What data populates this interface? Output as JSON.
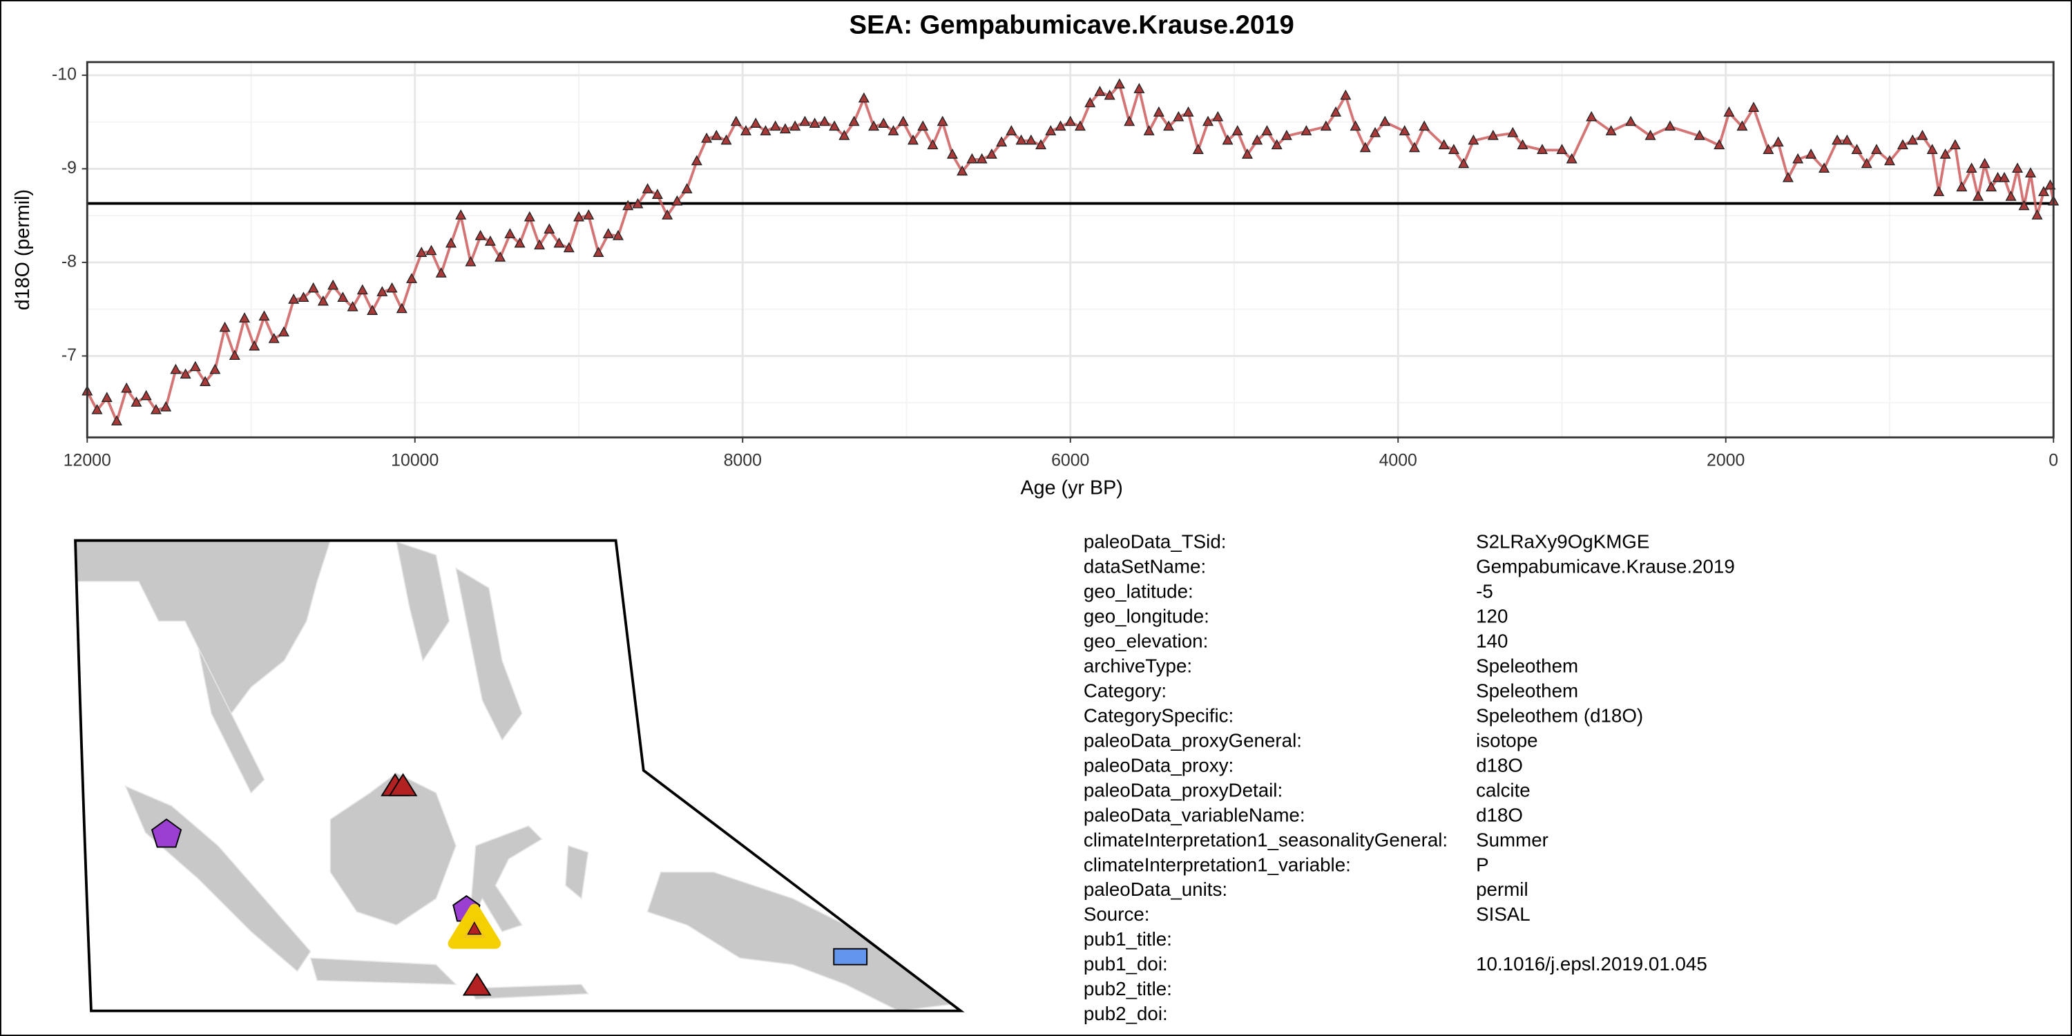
{
  "chart_data": {
    "type": "line",
    "title": "SEA: Gempabumicave.Krause.2019",
    "xlabel": "Age (yr BP)",
    "ylabel": "d18O (permil)",
    "xlim": [
      12000,
      0
    ],
    "xticks": [
      12000,
      10000,
      8000,
      6000,
      4000,
      2000,
      0
    ],
    "xminorticks": [
      11000,
      9000,
      7000,
      5000,
      3000,
      1000
    ],
    "ylim": [
      -6.13,
      -10.14
    ],
    "yticks": [
      -10,
      -9,
      -8,
      -7
    ],
    "yminorticks": [
      -9.5,
      -8.5,
      -7.5,
      -6.5
    ],
    "grid": true,
    "reference_line": -8.63,
    "color": "#cd5c5c",
    "marker_color": "#a83a3a",
    "x": [
      12000,
      11940,
      11880,
      11820,
      11760,
      11700,
      11640,
      11580,
      11520,
      11460,
      11400,
      11340,
      11280,
      11220,
      11160,
      11100,
      11040,
      10980,
      10920,
      10860,
      10800,
      10740,
      10680,
      10620,
      10560,
      10500,
      10440,
      10380,
      10320,
      10260,
      10200,
      10140,
      10080,
      10020,
      9960,
      9900,
      9840,
      9780,
      9720,
      9660,
      9600,
      9540,
      9480,
      9420,
      9360,
      9300,
      9240,
      9180,
      9120,
      9060,
      9000,
      8940,
      8880,
      8820,
      8760,
      8700,
      8640,
      8580,
      8520,
      8460,
      8400,
      8340,
      8280,
      8220,
      8160,
      8100,
      8040,
      7980,
      7920,
      7860,
      7800,
      7740,
      7680,
      7620,
      7560,
      7500,
      7440,
      7380,
      7320,
      7260,
      7200,
      7140,
      7080,
      7020,
      6960,
      6900,
      6840,
      6780,
      6720,
      6660,
      6600,
      6540,
      6480,
      6420,
      6360,
      6300,
      6240,
      6180,
      6120,
      6060,
      6000,
      5940,
      5880,
      5820,
      5760,
      5700,
      5640,
      5580,
      5520,
      5460,
      5400,
      5340,
      5280,
      5220,
      5160,
      5100,
      5040,
      4980,
      4920,
      4860,
      4800,
      4740,
      4680,
      4560,
      4440,
      4380,
      4320,
      4260,
      4200,
      4140,
      4080,
      3960,
      3900,
      3840,
      3720,
      3660,
      3600,
      3540,
      3420,
      3300,
      3240,
      3120,
      3000,
      2940,
      2820,
      2700,
      2580,
      2460,
      2340,
      2160,
      2040,
      1980,
      1900,
      1830,
      1740,
      1680,
      1620,
      1560,
      1480,
      1400,
      1320,
      1260,
      1200,
      1140,
      1080,
      1000,
      920,
      860,
      800,
      740,
      700,
      660,
      600,
      560,
      500,
      460,
      420,
      380,
      340,
      300,
      260,
      220,
      180,
      140,
      100,
      60,
      20,
      0
    ],
    "values": [
      -6.62,
      -6.42,
      -6.55,
      -6.3,
      -6.65,
      -6.5,
      -6.57,
      -6.42,
      -6.45,
      -6.85,
      -6.8,
      -6.88,
      -6.72,
      -6.85,
      -7.3,
      -7.0,
      -7.4,
      -7.1,
      -7.42,
      -7.18,
      -7.25,
      -7.6,
      -7.62,
      -7.72,
      -7.58,
      -7.75,
      -7.62,
      -7.52,
      -7.7,
      -7.48,
      -7.68,
      -7.72,
      -7.5,
      -7.82,
      -8.1,
      -8.12,
      -7.88,
      -8.2,
      -8.5,
      -8.0,
      -8.28,
      -8.22,
      -8.05,
      -8.3,
      -8.2,
      -8.48,
      -8.18,
      -8.35,
      -8.2,
      -8.15,
      -8.48,
      -8.5,
      -8.1,
      -8.3,
      -8.28,
      -8.6,
      -8.62,
      -8.78,
      -8.72,
      -8.5,
      -8.65,
      -8.78,
      -9.08,
      -9.32,
      -9.35,
      -9.3,
      -9.5,
      -9.4,
      -9.48,
      -9.4,
      -9.45,
      -9.42,
      -9.45,
      -9.5,
      -9.48,
      -9.5,
      -9.45,
      -9.35,
      -9.5,
      -9.75,
      -9.45,
      -9.48,
      -9.4,
      -9.5,
      -9.3,
      -9.45,
      -9.25,
      -9.5,
      -9.15,
      -8.97,
      -9.1,
      -9.1,
      -9.15,
      -9.28,
      -9.4,
      -9.3,
      -9.3,
      -9.25,
      -9.4,
      -9.45,
      -9.5,
      -9.45,
      -9.7,
      -9.82,
      -9.78,
      -9.9,
      -9.5,
      -9.85,
      -9.4,
      -9.6,
      -9.45,
      -9.55,
      -9.6,
      -9.2,
      -9.5,
      -9.55,
      -9.3,
      -9.4,
      -9.15,
      -9.3,
      -9.4,
      -9.25,
      -9.35,
      -9.4,
      -9.45,
      -9.6,
      -9.78,
      -9.45,
      -9.22,
      -9.38,
      -9.5,
      -9.4,
      -9.22,
      -9.45,
      -9.25,
      -9.2,
      -9.05,
      -9.3,
      -9.35,
      -9.38,
      -9.25,
      -9.2,
      -9.2,
      -9.1,
      -9.55,
      -9.4,
      -9.5,
      -9.35,
      -9.45,
      -9.35,
      -9.25,
      -9.6,
      -9.45,
      -9.65,
      -9.2,
      -9.28,
      -8.9,
      -9.1,
      -9.15,
      -9.0,
      -9.3,
      -9.3,
      -9.2,
      -9.05,
      -9.2,
      -9.08,
      -9.25,
      -9.3,
      -9.35,
      -9.2,
      -8.75,
      -9.15,
      -9.25,
      -8.8,
      -9.0,
      -8.7,
      -9.05,
      -8.8,
      -8.9,
      -8.9,
      -8.7,
      -9.0,
      -8.6,
      -8.95,
      -8.5,
      -8.75,
      -8.82,
      -8.65
    ]
  },
  "metadata": {
    "rows": [
      [
        "paleoData_TSid:",
        "S2LRaXy9OgKMGE"
      ],
      [
        "dataSetName:",
        "Gempabumicave.Krause.2019"
      ],
      [
        "geo_latitude:",
        "-5"
      ],
      [
        "geo_longitude:",
        "120"
      ],
      [
        "geo_elevation:",
        "140"
      ],
      [
        "archiveType:",
        "Speleothem"
      ],
      [
        "Category:",
        "Speleothem"
      ],
      [
        "CategorySpecific:",
        "Speleothem (d18O)"
      ],
      [
        "paleoData_proxyGeneral:",
        "isotope"
      ],
      [
        "paleoData_proxy:",
        "d18O"
      ],
      [
        "paleoData_proxyDetail:",
        "calcite"
      ],
      [
        "paleoData_variableName:",
        "d18O"
      ],
      [
        "climateInterpretation1_seasonalityGeneral:",
        "Summer"
      ],
      [
        "climateInterpretation1_variable:",
        "P"
      ],
      [
        "paleoData_units:",
        "permil"
      ],
      [
        "Source:",
        "SISAL"
      ],
      [
        "pub1_title:"
      ],
      [
        "pub1_doi:",
        "10.1016/j.epsl.2019.01.045"
      ],
      [
        "pub2_title:"
      ],
      [
        "pub2_doi:"
      ]
    ]
  }
}
